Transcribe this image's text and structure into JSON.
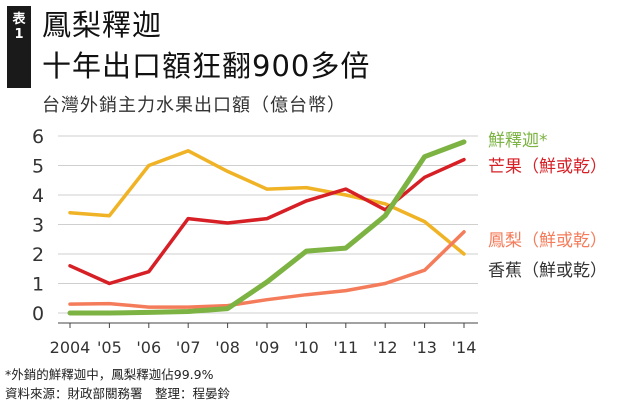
{
  "header": {
    "badge": [
      "表",
      "1"
    ],
    "title_line1": "鳳梨釋迦",
    "title_line2": "十年出口額狂翻900多倍",
    "subtitle": "台灣外銷主力水果出口額（億台幣）"
  },
  "notes": {
    "footnote": "*外銷的鮮釋迦中，鳳梨釋迦佔99.9%",
    "source": "資料來源：財政部關務署　整理：程晏鈴"
  },
  "colors": {
    "custard_apple": "#7cb342",
    "mango": "#d71f26",
    "pineapple": "#f47c5a",
    "banana": "#f0b325",
    "grid": "#cfcfcf",
    "axis": "#444444"
  },
  "chart_data": {
    "type": "line",
    "x": [
      "2004",
      "'05",
      "'06",
      "'07",
      "'08",
      "'09",
      "'10",
      "'11",
      "'12",
      "'13",
      "'14"
    ],
    "ylim": [
      0,
      6
    ],
    "yticks": [
      0,
      1,
      2,
      3,
      4,
      5,
      6
    ],
    "grid": "horizontal",
    "title": "台灣外銷主力水果出口額（億台幣）",
    "series": [
      {
        "name": "香蕉（鮮或乾）",
        "color_key": "banana",
        "values": [
          3.4,
          3.3,
          5.0,
          5.5,
          4.8,
          4.2,
          4.25,
          4.0,
          3.7,
          3.1,
          2.0
        ]
      },
      {
        "name": "鳳梨（鮮或乾）",
        "color_key": "pineapple",
        "values": [
          0.3,
          0.32,
          0.2,
          0.2,
          0.25,
          0.45,
          0.62,
          0.76,
          1.0,
          1.45,
          2.75
        ]
      },
      {
        "name": "芒果（鮮或乾）",
        "color_key": "mango",
        "values": [
          1.6,
          1.0,
          1.4,
          3.2,
          3.05,
          3.2,
          3.8,
          4.2,
          3.5,
          4.6,
          5.2
        ]
      },
      {
        "name": "鮮釋迦*",
        "color_key": "custard_apple",
        "values": [
          0.0,
          0.0,
          0.02,
          0.05,
          0.15,
          1.05,
          2.1,
          2.2,
          3.3,
          5.3,
          5.8
        ]
      }
    ]
  }
}
